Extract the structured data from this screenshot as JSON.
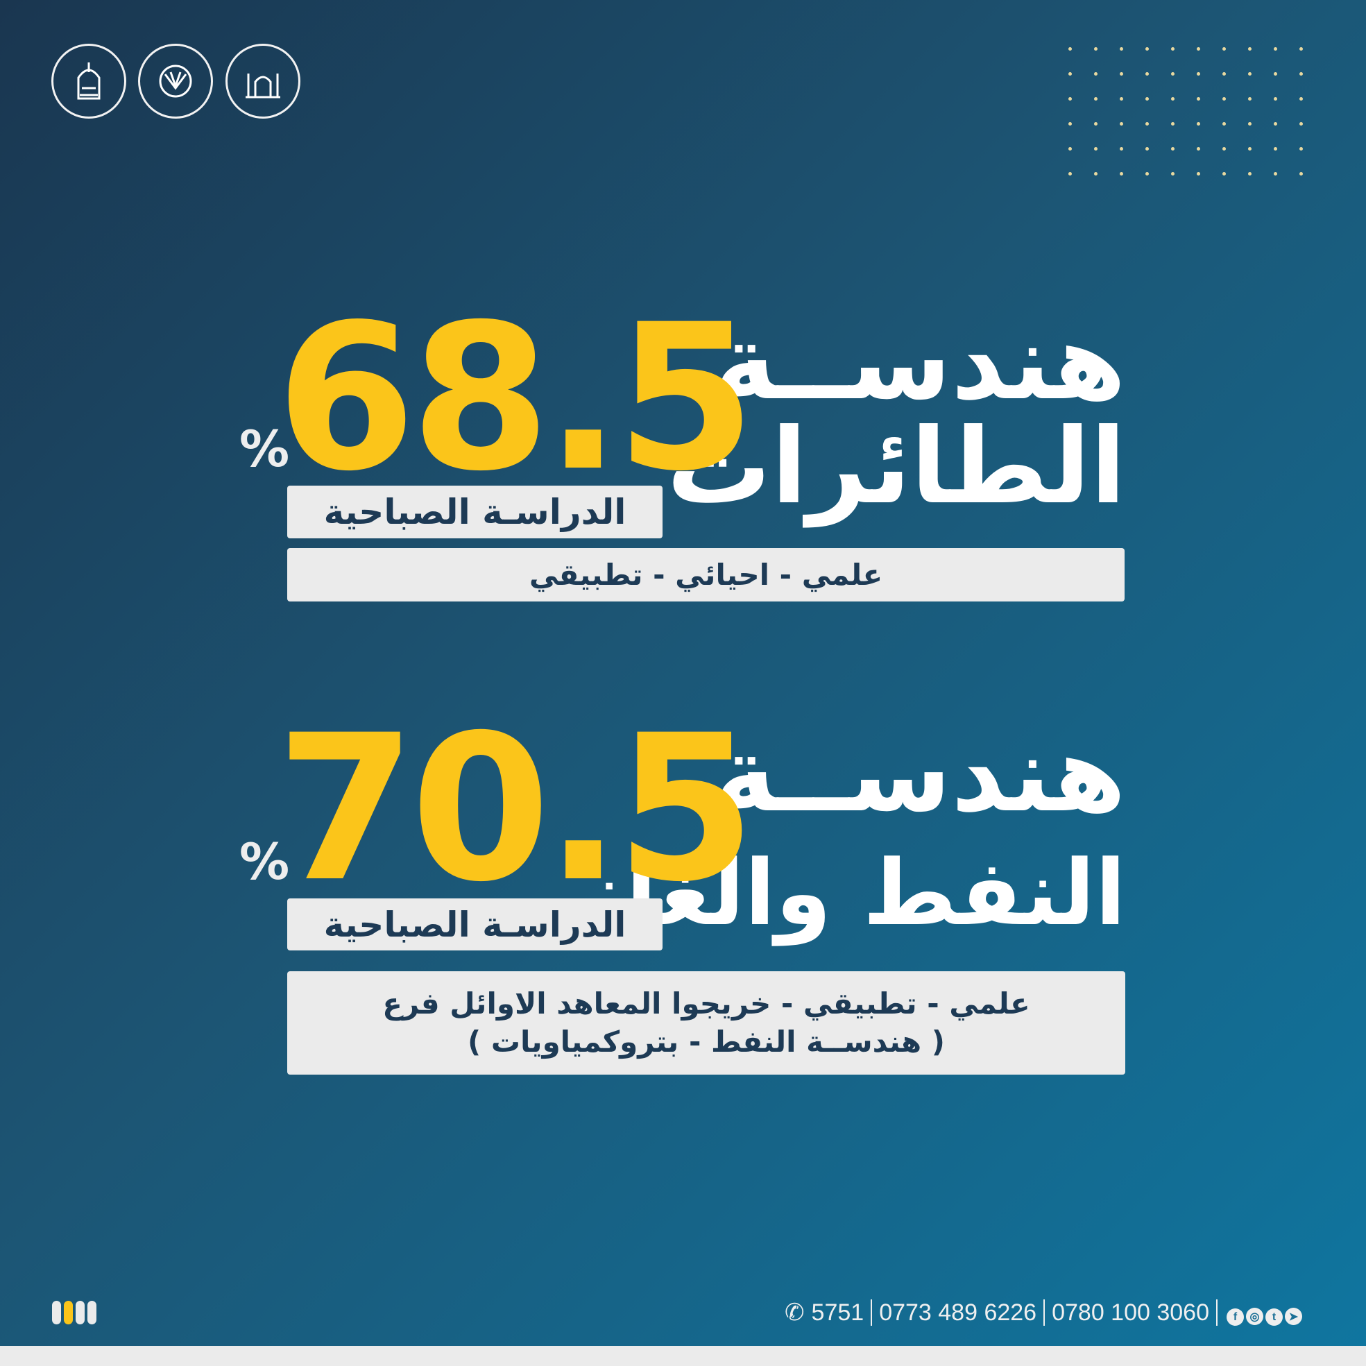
{
  "logos": [
    {
      "name": "university-logo"
    },
    {
      "name": "ministry-higher-education-logo"
    },
    {
      "name": "holy-shrine-logo"
    }
  ],
  "programs": [
    {
      "title_line1": "هندســة",
      "title_line2": "الطائرات",
      "score": "68.5",
      "percent": "%",
      "study_type": "الدراسـة الصباحية",
      "branches": [
        "علمي - احيائي - تطبيقي"
      ]
    },
    {
      "title_line1": "هندســة",
      "title_line2": "النفط والغاز",
      "score": "70.5",
      "percent": "%",
      "study_type": "الدراسـة الصباحية",
      "branches": [
        "علمي - تطبيقي - خريجوا المعاهد الاوائل فرع",
        "( هندســة النفط - بتروكمياويات )"
      ]
    }
  ],
  "footer": {
    "phone_icon": "phone-icon",
    "short_number": "5751",
    "phone_1": "0773 489 6226",
    "phone_2": "0780 100 3060",
    "social": [
      "facebook-icon",
      "instagram-icon",
      "twitter-icon",
      "telegram-icon"
    ]
  },
  "colors": {
    "accent": "#fbc51a",
    "box": "#ebebeb",
    "box_text": "#1d3a55",
    "bg_start": "#1a3650",
    "bg_end": "#0f76a0"
  },
  "page_indicator": {
    "count": 4,
    "active": 2
  }
}
